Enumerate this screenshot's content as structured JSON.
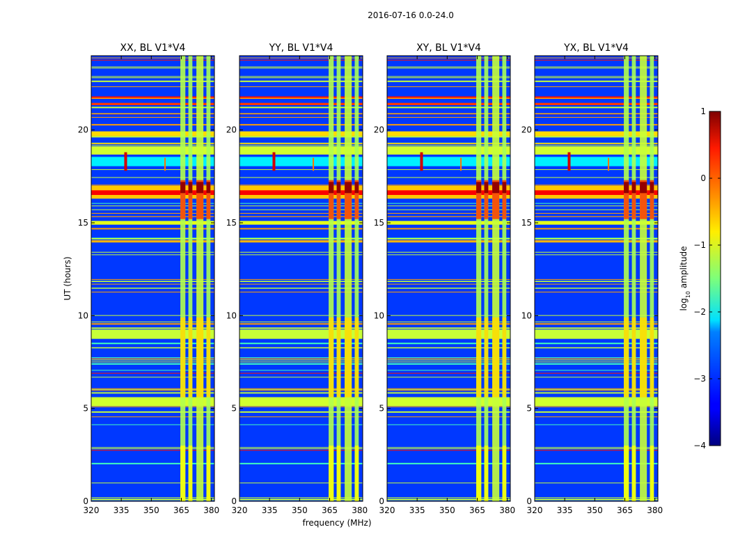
{
  "figure": {
    "suptitle": "2016-07-16 0.0-24.0",
    "xlabel": "frequency (MHz)",
    "ylabel": "UT (hours)",
    "colorbar": {
      "label_prefix": "log",
      "label_sub": "10",
      "label_suffix": " amplitude",
      "min": -4,
      "max": 1,
      "ticks": [
        1,
        0,
        -1,
        -2,
        -3,
        -4
      ],
      "tick_labels": [
        "1",
        "0",
        "−1",
        "−2",
        "−3",
        "−4"
      ],
      "colormap": "jet"
    }
  },
  "chart_data": [
    {
      "type": "heatmap",
      "title": "XX, BL V1*V4",
      "xlim": [
        320,
        381.5
      ],
      "ylim": [
        0,
        24
      ],
      "xticks": [
        320,
        335,
        350,
        365,
        380
      ],
      "yticks": [
        0,
        5,
        10,
        15,
        20
      ],
      "xlabel": "frequency (MHz)",
      "ylabel": "UT (hours)",
      "zlabel": "log10 amplitude",
      "zlim": [
        -4,
        1
      ]
    },
    {
      "type": "heatmap",
      "title": "YY, BL V1*V4",
      "xlim": [
        320,
        381.5
      ],
      "ylim": [
        0,
        24
      ],
      "xticks": [
        320,
        335,
        350,
        365,
        380
      ],
      "yticks": [
        0,
        5,
        10,
        15,
        20
      ],
      "xlabel": "frequency (MHz)",
      "zlim": [
        -4,
        1
      ]
    },
    {
      "type": "heatmap",
      "title": "XY, BL V1*V4",
      "xlim": [
        320,
        381.5
      ],
      "ylim": [
        0,
        24
      ],
      "xticks": [
        320,
        335,
        350,
        365,
        380
      ],
      "yticks": [
        0,
        5,
        10,
        15,
        20
      ],
      "xlabel": "frequency (MHz)",
      "zlim": [
        -4,
        1
      ]
    },
    {
      "type": "heatmap",
      "title": "YX, BL V1*V4",
      "xlim": [
        320,
        381.5
      ],
      "ylim": [
        0,
        24
      ],
      "xticks": [
        320,
        335,
        350,
        365,
        380
      ],
      "yticks": [
        0,
        5,
        10,
        15,
        20
      ],
      "xlabel": "frequency (MHz)",
      "zlim": [
        -4,
        1
      ]
    }
  ]
}
